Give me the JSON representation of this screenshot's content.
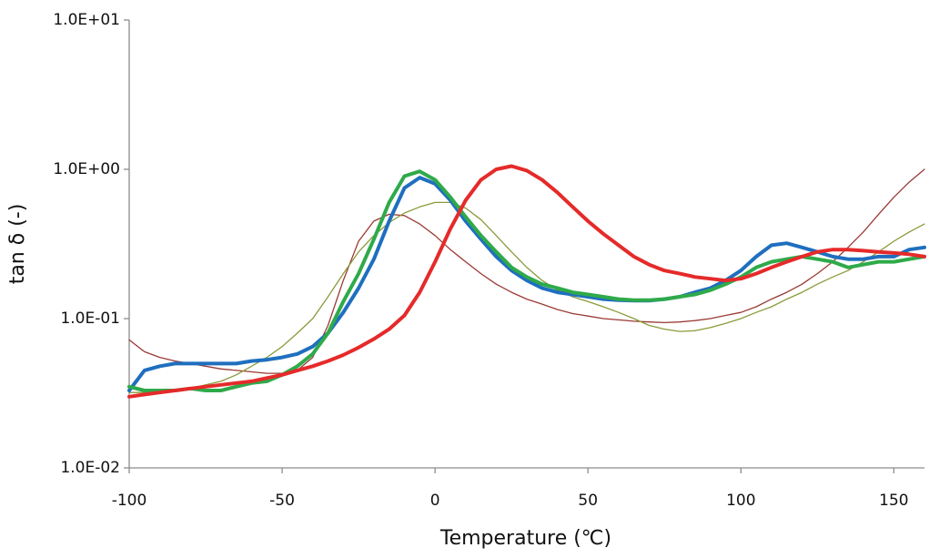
{
  "chart_data": {
    "type": "line",
    "x_label": "Temperature (℃)",
    "y_label": "tan δ (-)",
    "xlim": [
      -100,
      160
    ],
    "xticks": [
      -100,
      -50,
      0,
      50,
      100,
      150
    ],
    "ylim": [
      0.01,
      10
    ],
    "y_log": true,
    "yticks": [
      {
        "value": 0.01,
        "label": "1.0E-02"
      },
      {
        "value": 0.1,
        "label": "1.0E-01"
      },
      {
        "value": 1,
        "label": "1.0E+00"
      },
      {
        "value": 10,
        "label": "1.0E+01"
      }
    ],
    "grid": false,
    "x": [
      -100,
      -95,
      -90,
      -85,
      -80,
      -75,
      -70,
      -65,
      -60,
      -55,
      -50,
      -45,
      -40,
      -35,
      -30,
      -25,
      -20,
      -15,
      -10,
      -5,
      0,
      5,
      10,
      15,
      20,
      25,
      30,
      35,
      40,
      45,
      50,
      55,
      60,
      65,
      70,
      75,
      80,
      85,
      90,
      95,
      100,
      105,
      110,
      115,
      120,
      125,
      130,
      135,
      140,
      145,
      150,
      155,
      160
    ],
    "series": [
      {
        "color": "#9a3a34",
        "linewidth": 1.3,
        "values": [
          0.072,
          0.06,
          0.055,
          0.052,
          0.05,
          0.048,
          0.046,
          0.045,
          0.044,
          0.043,
          0.043,
          0.045,
          0.055,
          0.09,
          0.18,
          0.33,
          0.45,
          0.5,
          0.49,
          0.43,
          0.36,
          0.29,
          0.24,
          0.2,
          0.17,
          0.15,
          0.135,
          0.125,
          0.115,
          0.108,
          0.104,
          0.1,
          0.098,
          0.096,
          0.095,
          0.094,
          0.095,
          0.097,
          0.1,
          0.105,
          0.11,
          0.12,
          0.135,
          0.15,
          0.17,
          0.2,
          0.24,
          0.3,
          0.38,
          0.5,
          0.65,
          0.82,
          1.0
        ]
      },
      {
        "color": "#8a9a3a",
        "linewidth": 1.3,
        "values": [
          0.032,
          0.032,
          0.032,
          0.033,
          0.034,
          0.036,
          0.038,
          0.042,
          0.048,
          0.055,
          0.065,
          0.08,
          0.1,
          0.14,
          0.2,
          0.28,
          0.36,
          0.44,
          0.51,
          0.56,
          0.6,
          0.6,
          0.55,
          0.46,
          0.36,
          0.28,
          0.22,
          0.18,
          0.155,
          0.14,
          0.13,
          0.12,
          0.11,
          0.1,
          0.09,
          0.085,
          0.082,
          0.083,
          0.087,
          0.093,
          0.1,
          0.11,
          0.12,
          0.135,
          0.15,
          0.17,
          0.19,
          0.21,
          0.24,
          0.28,
          0.33,
          0.38,
          0.43
        ]
      },
      {
        "color": "#1f6fbf",
        "linewidth": 4,
        "values": [
          0.033,
          0.045,
          0.048,
          0.05,
          0.05,
          0.05,
          0.05,
          0.05,
          0.052,
          0.053,
          0.055,
          0.058,
          0.065,
          0.08,
          0.11,
          0.16,
          0.25,
          0.45,
          0.75,
          0.88,
          0.8,
          0.62,
          0.45,
          0.34,
          0.26,
          0.21,
          0.18,
          0.16,
          0.15,
          0.145,
          0.14,
          0.135,
          0.133,
          0.132,
          0.132,
          0.135,
          0.14,
          0.15,
          0.16,
          0.18,
          0.21,
          0.26,
          0.31,
          0.32,
          0.3,
          0.28,
          0.26,
          0.25,
          0.25,
          0.26,
          0.26,
          0.29,
          0.3
        ]
      },
      {
        "color": "#2faa4a",
        "linewidth": 4,
        "values": [
          0.035,
          0.033,
          0.033,
          0.033,
          0.034,
          0.033,
          0.033,
          0.035,
          0.037,
          0.038,
          0.042,
          0.048,
          0.058,
          0.08,
          0.13,
          0.2,
          0.34,
          0.6,
          0.9,
          0.97,
          0.85,
          0.65,
          0.48,
          0.36,
          0.28,
          0.22,
          0.19,
          0.17,
          0.16,
          0.15,
          0.145,
          0.14,
          0.135,
          0.133,
          0.133,
          0.135,
          0.14,
          0.145,
          0.155,
          0.17,
          0.19,
          0.22,
          0.24,
          0.25,
          0.26,
          0.25,
          0.24,
          0.22,
          0.23,
          0.24,
          0.24,
          0.25,
          0.26
        ]
      },
      {
        "color": "#e52a2a",
        "linewidth": 4,
        "values": [
          0.03,
          0.031,
          0.032,
          0.033,
          0.034,
          0.035,
          0.036,
          0.037,
          0.038,
          0.04,
          0.042,
          0.045,
          0.048,
          0.052,
          0.057,
          0.064,
          0.073,
          0.085,
          0.105,
          0.15,
          0.24,
          0.4,
          0.62,
          0.85,
          1.0,
          1.05,
          0.98,
          0.85,
          0.7,
          0.56,
          0.45,
          0.37,
          0.31,
          0.26,
          0.23,
          0.21,
          0.2,
          0.19,
          0.185,
          0.18,
          0.185,
          0.2,
          0.22,
          0.24,
          0.26,
          0.28,
          0.29,
          0.29,
          0.285,
          0.28,
          0.275,
          0.27,
          0.26
        ]
      }
    ]
  }
}
